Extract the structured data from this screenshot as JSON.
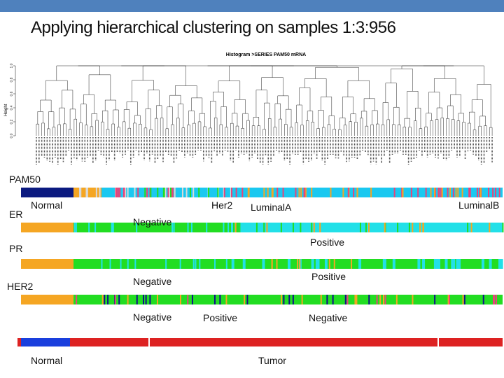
{
  "title": "Applying hierarchical clustering on samples 1:3:956",
  "dendrogram": {
    "title": "Histogram >SERIES PAM50 mRNA",
    "ylabel": "Height",
    "yticks": [
      "0.0",
      "0.2",
      "0.4",
      "0.6",
      "0.8",
      "1.0"
    ]
  },
  "rows": {
    "pam50": {
      "name": "PAM50",
      "labels": [
        "Normal",
        "Her2",
        "LuminalA",
        "LuminalB"
      ]
    },
    "er": {
      "name": "ER",
      "labels": [
        "Negative",
        "Positive"
      ]
    },
    "pr": {
      "name": "PR",
      "labels": [
        "Negative",
        "Positive"
      ]
    },
    "her2": {
      "name": "HER2",
      "labels": [
        "Negative",
        "Positive",
        "Negative"
      ]
    },
    "tissue": {
      "labels": [
        "Normal",
        "Tumor"
      ]
    }
  },
  "colors": {
    "header": "#4f81bd",
    "normal_pam50": "#0b1a80",
    "her2": "#d9d9d9",
    "luminal_a": "#1ac8f0",
    "luminal_b": "#e8437a",
    "negative": "#f5a623",
    "positive": "#22e0e8",
    "her2_negative": "#22dd22",
    "her2_positive": "#111188",
    "normal_tissue": "#1a3fdd",
    "tumor_tissue": "#dd2222"
  }
}
